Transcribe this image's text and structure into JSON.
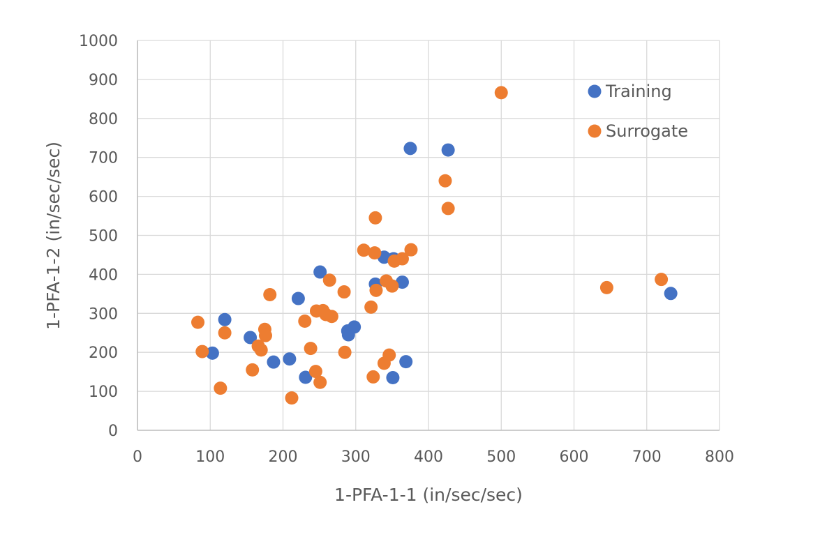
{
  "chart_data": {
    "type": "scatter",
    "title": "",
    "xlabel": "1-PFA-1-1 (in/sec/sec)",
    "ylabel": "1-PFA-1-2 (in/sec/sec)",
    "xlim": [
      0,
      800
    ],
    "ylim": [
      0,
      1000
    ],
    "x_ticks": [
      0,
      100,
      200,
      300,
      400,
      500,
      600,
      700,
      800
    ],
    "y_ticks": [
      0,
      100,
      200,
      300,
      400,
      500,
      600,
      700,
      800,
      900,
      1000
    ],
    "grid": true,
    "legend_position": "top-right",
    "series": [
      {
        "name": "Training",
        "color": "#4472C4",
        "points": [
          [
            103,
            198
          ],
          [
            120,
            284
          ],
          [
            155,
            238
          ],
          [
            187,
            175
          ],
          [
            209,
            183
          ],
          [
            221,
            338
          ],
          [
            231,
            136
          ],
          [
            251,
            406
          ],
          [
            289,
            255
          ],
          [
            290,
            245
          ],
          [
            298,
            265
          ],
          [
            327,
            375
          ],
          [
            339,
            444
          ],
          [
            351,
            135
          ],
          [
            352,
            440
          ],
          [
            364,
            380
          ],
          [
            369,
            176
          ],
          [
            375,
            723
          ],
          [
            427,
            719
          ],
          [
            733,
            351
          ]
        ]
      },
      {
        "name": "Surrogate",
        "color": "#ED7D31",
        "points": [
          [
            83,
            277
          ],
          [
            89,
            202
          ],
          [
            114,
            108
          ],
          [
            120,
            250
          ],
          [
            158,
            155
          ],
          [
            166,
            216
          ],
          [
            170,
            206
          ],
          [
            175,
            259
          ],
          [
            176,
            243
          ],
          [
            182,
            348
          ],
          [
            212,
            83
          ],
          [
            230,
            280
          ],
          [
            238,
            210
          ],
          [
            245,
            151
          ],
          [
            246,
            306
          ],
          [
            251,
            123
          ],
          [
            255,
            307
          ],
          [
            259,
            297
          ],
          [
            264,
            385
          ],
          [
            267,
            292
          ],
          [
            284,
            355
          ],
          [
            285,
            200
          ],
          [
            321,
            316
          ],
          [
            324,
            137
          ],
          [
            326,
            455
          ],
          [
            327,
            545
          ],
          [
            328,
            359
          ],
          [
            311,
            462
          ],
          [
            339,
            172
          ],
          [
            342,
            383
          ],
          [
            346,
            193
          ],
          [
            350,
            370
          ],
          [
            353,
            434
          ],
          [
            364,
            440
          ],
          [
            376,
            463
          ],
          [
            423,
            640
          ],
          [
            427,
            569
          ],
          [
            500,
            866
          ],
          [
            645,
            366
          ],
          [
            720,
            387
          ]
        ]
      }
    ]
  }
}
